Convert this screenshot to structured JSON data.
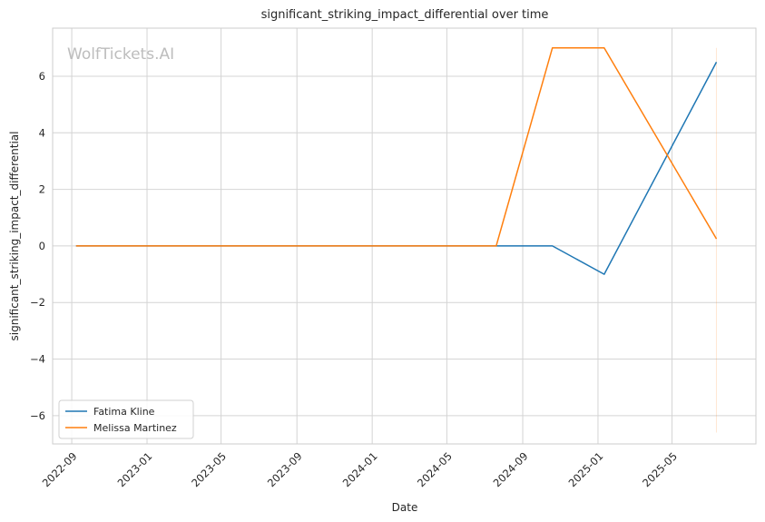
{
  "chart_data": {
    "type": "line",
    "title": "significant_striking_impact_differential over time",
    "xlabel": "Date",
    "ylabel": "significant_striking_impact_differential",
    "watermark": "WolfTickets.AI",
    "x_ticks": [
      "2022-09",
      "2023-01",
      "2023-05",
      "2023-09",
      "2024-01",
      "2024-05",
      "2024-09",
      "2025-01",
      "2025-05"
    ],
    "y_ticks": [
      -6,
      -4,
      -2,
      0,
      2,
      4,
      6
    ],
    "xlim": [
      "2022-08-01",
      "2025-09-14"
    ],
    "ylim": [
      -7.0,
      7.7
    ],
    "grid": true,
    "legend_position": "bottom-left",
    "series": [
      {
        "name": "Fatima Kline",
        "color": "#1f77b4",
        "x": [
          "2022-09-08",
          "2024-07-20",
          "2024-10-19",
          "2025-01-11",
          "2025-07-12"
        ],
        "y": [
          0,
          0,
          0,
          -1,
          6.5
        ]
      },
      {
        "name": "Melissa Martinez",
        "color": "#ff7f0e",
        "x": [
          "2022-09-08",
          "2024-07-20",
          "2024-10-19",
          "2025-01-11",
          "2025-07-12"
        ],
        "y": [
          0,
          0,
          7,
          7,
          0.25
        ]
      }
    ]
  }
}
